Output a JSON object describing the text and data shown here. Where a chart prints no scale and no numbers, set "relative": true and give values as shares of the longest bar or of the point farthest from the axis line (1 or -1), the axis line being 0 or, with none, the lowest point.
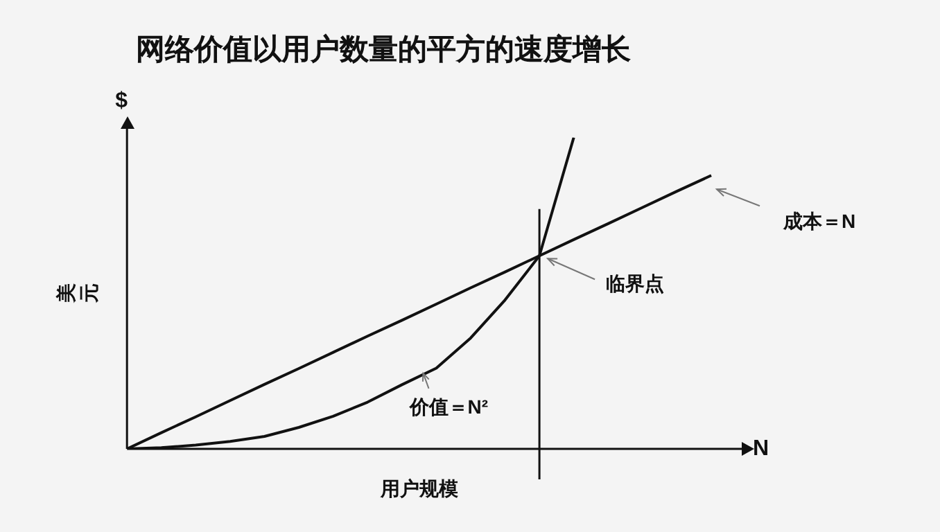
{
  "chart_data": {
    "type": "line",
    "title": "网络价值以用户数量的平方的速度增长",
    "xlabel": "用户规模",
    "ylabel": "美元",
    "relative": true,
    "categories": [
      null,
      null,
      null,
      null,
      null,
      null,
      null,
      null,
      null,
      null,
      null,
      null,
      null,
      null,
      null,
      null,
      null,
      null
    ],
    "series": [
      {
        "name": "成本＝N",
        "color": "#111111",
        "values": [
          0,
          0.052,
          0.103,
          0.155,
          0.207,
          0.258,
          0.31,
          0.362,
          0.413,
          0.465,
          0.517,
          0.568,
          0.62,
          0.672,
          0.723,
          0.775,
          0.827,
          0.878
        ]
      },
      {
        "name": "价值＝N²",
        "color": "#111111",
        "values": [
          0,
          0.004,
          0.012,
          0.024,
          0.04,
          0.069,
          0.105,
          0.15,
          0.206,
          0.259,
          0.356,
          0.478,
          0.62,
          1,
          null,
          null,
          null,
          null
        ]
      }
    ],
    "annotations": [
      "$",
      "N",
      "临界点"
    ],
    "legend": false,
    "grid": false,
    "marker": "none",
    "line_style": "solid"
  }
}
